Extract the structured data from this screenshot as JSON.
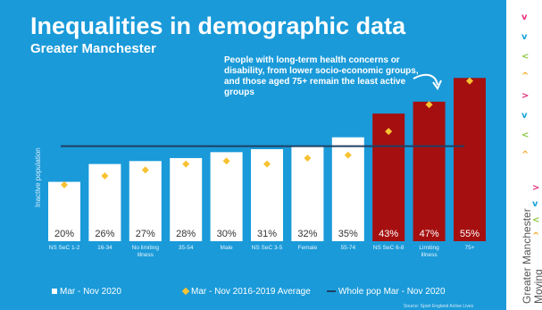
{
  "header": {
    "title": "Inequalities in demographic data",
    "subtitle": "Greater Manchester"
  },
  "annotation": "People with long-term health concerns or disability, from lower socio-economic groups, and those aged 75+ remain the least active groups",
  "source": "Source: Sport England Active Lives",
  "brand": {
    "line1": "Greater Manchester",
    "line2": "Moving",
    "chevrons": [
      {
        "glyph": "v",
        "color": "#e6317e"
      },
      {
        "glyph": "v",
        "color": "#1aa3dd"
      },
      {
        "glyph": "<",
        "color": "#8dc63f"
      },
      {
        "glyph": "^",
        "color": "#f6a623"
      },
      {
        "glyph": ">",
        "color": "#e6317e"
      },
      {
        "glyph": "v",
        "color": "#1aa3dd"
      },
      {
        "glyph": "<",
        "color": "#8dc63f"
      },
      {
        "glyph": "^",
        "color": "#f6a623"
      },
      {
        "glyph": ">",
        "color": "#e6317e"
      },
      {
        "glyph": "v",
        "color": "#1aa3dd"
      },
      {
        "glyph": "<",
        "color": "#8dc63f"
      },
      {
        "glyph": "^",
        "color": "#f6a623"
      }
    ]
  },
  "chart_data": {
    "type": "bar",
    "ylabel": "Inactive population",
    "ylim": [
      0,
      62
    ],
    "categories": [
      "NS SeC 1-2",
      "16-34",
      "No limiting illness",
      "35-54",
      "Male",
      "NS SeC 3-5",
      "Female",
      "55-74",
      "NS SeC 6-8",
      "Limiting illness",
      "75+"
    ],
    "value_labels": [
      "20%",
      "26%",
      "27%",
      "28%",
      "30%",
      "31%",
      "32%",
      "35%",
      "43%",
      "47%",
      "55%"
    ],
    "series": [
      {
        "name": "Mar - Nov 2020",
        "type": "bar",
        "values": [
          20,
          26,
          27,
          28,
          30,
          31,
          32,
          35,
          43,
          47,
          55
        ]
      },
      {
        "name": "Mar - Nov 2016-2019 Average",
        "type": "scatter",
        "values": [
          19,
          22,
          24,
          26,
          27,
          26,
          28,
          29,
          37,
          46,
          54
        ]
      },
      {
        "name": "Whole pop Mar - Nov 2020",
        "type": "line",
        "value": 32
      }
    ],
    "colors": {
      "bar_default": "#ffffff",
      "bar_highlight": "#a50f0f",
      "highlight_categories": [
        "NS SeC 6-8",
        "Limiting illness",
        "75+"
      ],
      "diamond": "#f7c233",
      "line": "#1d4063"
    },
    "legend": "bottom"
  }
}
